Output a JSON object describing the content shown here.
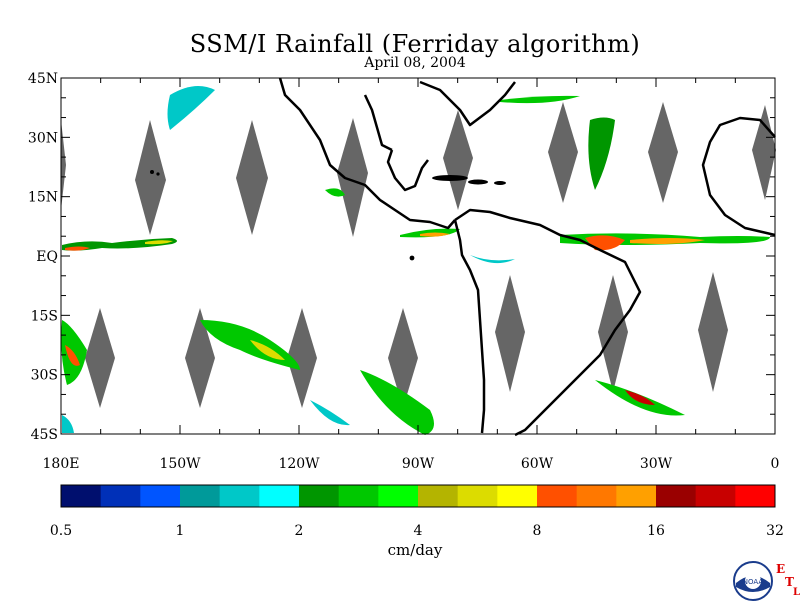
{
  "title": "SSM/I Rainfall (Ferriday algorithm)",
  "date": "April 08, 2004",
  "lat_labels": [
    "45N",
    "30N",
    "15N",
    "EQ",
    "15S",
    "30S",
    "45S"
  ],
  "lon_labels": [
    "180E",
    "150W",
    "120W",
    "90W",
    "60W",
    "30W",
    "0"
  ],
  "colorbar": {
    "units": "cm/day",
    "tick_labels": [
      "0.5",
      "1",
      "2",
      "4",
      "8",
      "16",
      "32"
    ],
    "colors": [
      "#000f6e",
      "#0030b8",
      "#0055ff",
      "#009a9a",
      "#00c8c8",
      "#00ffff",
      "#009600",
      "#00c800",
      "#00ff00",
      "#b4b400",
      "#dcdc00",
      "#ffff00",
      "#ff5000",
      "#ff7800",
      "#ffa000",
      "#9a0000",
      "#c80000",
      "#ff0000"
    ]
  },
  "logo": {
    "name": "NOAA",
    "letters": [
      "E",
      "T",
      "L"
    ]
  }
}
